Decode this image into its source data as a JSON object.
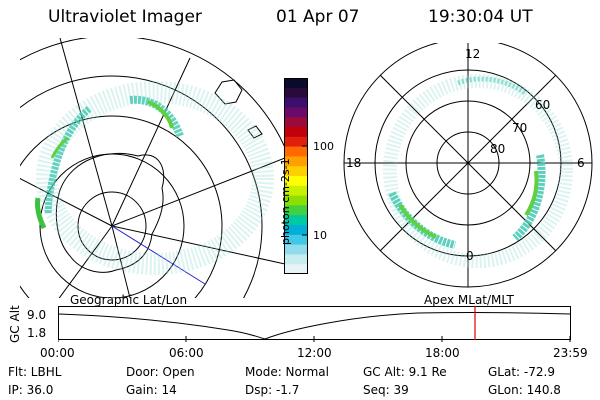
{
  "header": {
    "title": "Ultraviolet Imager",
    "date": "01 Apr 07",
    "time": "19:30:04 UT"
  },
  "geo_panel": {
    "label": "Geographic Lat/Lon"
  },
  "apex_panel": {
    "label": "Apex  MLat/MLT",
    "mlt_labels": {
      "top": "12",
      "left": "18",
      "right": "6",
      "bottom": "0"
    },
    "lat_labels": [
      "60",
      "70",
      "80"
    ]
  },
  "colorbar": {
    "unit_label": "photon cm-2s-1",
    "ticks": [
      "100",
      "10"
    ],
    "colors": [
      "#0a0a2a",
      "#2a0a3a",
      "#3b0f6b",
      "#6a0a6a",
      "#9a0a3a",
      "#c0000a",
      "#e0200a",
      "#ff6a00",
      "#ffa000",
      "#ffd000",
      "#ffff00",
      "#c8f000",
      "#8ce000",
      "#40d040",
      "#00c8a0",
      "#00b0d8",
      "#40c8e8",
      "#90dcec",
      "#c8ecf0",
      "#e8f4f4"
    ]
  },
  "altitude_plot": {
    "ylabel": "GC Alt",
    "yticks": [
      "9.0",
      "1.8"
    ],
    "xticks": [
      "00:00",
      "06:00",
      "12:00",
      "18:00",
      "23:59"
    ],
    "marker_color": "#e00000"
  },
  "status": {
    "row1": {
      "flt": "Flt: LBHL",
      "door": "Door: Open",
      "mode": "Mode: Normal",
      "gcalt": "GC Alt: 9.1 Re",
      "glat": "GLat: -72.9"
    },
    "row2": {
      "ip": "IP: 36.0",
      "gain": "Gain: 14",
      "dsp": "Dsp:   -1.7",
      "seq": "Seq: 39",
      "glon": "GLon: 140.8"
    }
  }
}
